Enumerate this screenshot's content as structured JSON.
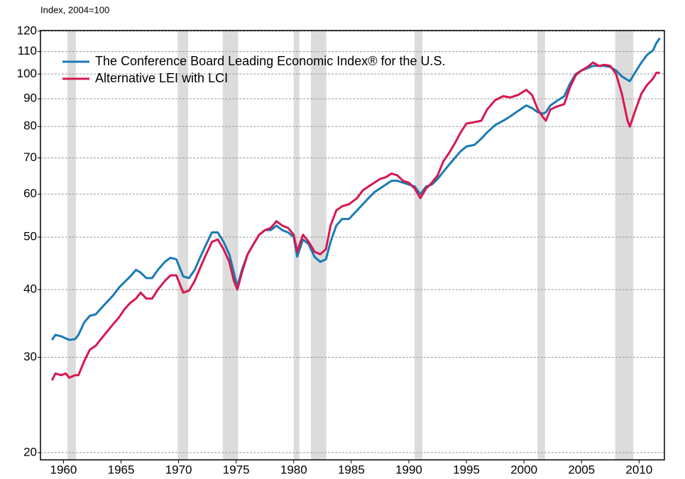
{
  "chart_data": {
    "type": "line",
    "subtitle": "Index, 2004=100",
    "log_y": true,
    "grid": true,
    "legend": "upper left",
    "shade_color": "#dcdcdc",
    "shaded_periods": [
      [
        1960.33,
        1961.08
      ],
      [
        1969.92,
        1970.83
      ],
      [
        1973.83,
        1975.17
      ],
      [
        1980.0,
        1980.5
      ],
      [
        1981.5,
        1982.83
      ],
      [
        1990.5,
        1991.17
      ],
      [
        2001.17,
        2001.83
      ],
      [
        2007.92,
        2009.5
      ]
    ],
    "xlim": [
      1958,
      2012.2
    ],
    "xticks": [
      1960,
      1965,
      1970,
      1975,
      1980,
      1985,
      1990,
      1995,
      2000,
      2005,
      2010
    ],
    "ylim": [
      19.4,
      120.3
    ],
    "yticks": [
      20,
      30,
      40,
      50,
      60,
      70,
      80,
      90,
      100,
      110,
      120
    ],
    "x": [
      1959.0,
      1959.3,
      1959.8,
      1960.2,
      1960.5,
      1961.0,
      1961.3,
      1961.8,
      1962.3,
      1962.8,
      1963.3,
      1963.8,
      1964.3,
      1964.8,
      1965.3,
      1965.8,
      1966.3,
      1966.7,
      1967.2,
      1967.7,
      1968.2,
      1968.8,
      1969.3,
      1969.8,
      1970.4,
      1970.9,
      1971.4,
      1971.9,
      1972.4,
      1972.9,
      1973.4,
      1973.9,
      1974.4,
      1974.8,
      1975.1,
      1975.5,
      1976.0,
      1976.5,
      1977.0,
      1977.5,
      1978.0,
      1978.5,
      1979.0,
      1979.5,
      1980.0,
      1980.3,
      1980.8,
      1981.3,
      1981.8,
      1982.3,
      1982.8,
      1983.2,
      1983.7,
      1984.2,
      1984.8,
      1985.5,
      1986.0,
      1986.5,
      1987.0,
      1987.5,
      1988.0,
      1988.5,
      1989.0,
      1989.5,
      1990.0,
      1990.5,
      1991.0,
      1991.5,
      1992.0,
      1992.5,
      1993.0,
      1993.5,
      1994.0,
      1994.5,
      1995.0,
      1995.7,
      1996.3,
      1996.8,
      1997.5,
      1998.2,
      1998.8,
      1999.5,
      2000.2,
      2000.7,
      2001.2,
      2001.7,
      2001.9,
      2002.3,
      2002.8,
      2003.5,
      2004.0,
      2004.5,
      2005.0,
      2005.5,
      2006.0,
      2006.5,
      2007.0,
      2007.5,
      2008.0,
      2008.5,
      2009.0,
      2009.2,
      2009.7,
      2010.2,
      2010.7,
      2011.2,
      2011.5,
      2011.8
    ],
    "series": [
      {
        "name": "The Conference Board Leading Economic Index® for the U.S.",
        "color": "#1a7ab5",
        "values": [
          32.3,
          33,
          32.8,
          32.5,
          32.3,
          32.4,
          33,
          34.8,
          35.8,
          36,
          37,
          38,
          39,
          40.3,
          41.3,
          42.3,
          43.5,
          43,
          42,
          42,
          43.5,
          45,
          45.8,
          45.5,
          42.3,
          42,
          43.5,
          46,
          48.5,
          51,
          51,
          49,
          46.5,
          43,
          40.5,
          43.5,
          46.5,
          48.5,
          50.5,
          51.5,
          51.5,
          52.5,
          51.5,
          51,
          50,
          46,
          49.5,
          48.5,
          46,
          45,
          45.5,
          49,
          52.5,
          54,
          54,
          56,
          57.5,
          59,
          60.5,
          61.5,
          62.5,
          63.5,
          63.5,
          63,
          62.5,
          62,
          60,
          62,
          62.5,
          64,
          66,
          68,
          70,
          72,
          73.5,
          74,
          76,
          78,
          80.5,
          82,
          83.5,
          85.5,
          87.5,
          86.5,
          85,
          84.5,
          85,
          87.5,
          89,
          91,
          96,
          100,
          101.5,
          102.5,
          103.5,
          103.5,
          103.5,
          103,
          101.5,
          99,
          97.5,
          97,
          101,
          105,
          108.5,
          110.5,
          114,
          116.5
        ]
      },
      {
        "name": "Alternative LEI with LCI",
        "color": "#d6184f",
        "values": [
          27.2,
          28,
          27.8,
          28,
          27.5,
          27.8,
          27.8,
          29.5,
          31,
          31.5,
          32.5,
          33.5,
          34.5,
          35.5,
          36.8,
          37.8,
          38.5,
          39.5,
          38.5,
          38.5,
          40,
          41.5,
          42.5,
          42.5,
          39.5,
          39.8,
          41.5,
          44,
          46.5,
          49,
          49.5,
          47.5,
          45,
          41.5,
          40,
          43,
          46.5,
          48.5,
          50.5,
          51.5,
          52,
          53.5,
          52.5,
          52,
          50.5,
          47,
          50.5,
          49,
          47,
          46.5,
          47.5,
          52.5,
          56,
          57,
          57.5,
          59,
          61,
          62,
          63,
          64,
          64.5,
          65.5,
          65,
          63.5,
          63,
          61.5,
          59,
          61.5,
          63,
          65,
          69,
          71.5,
          74.5,
          78,
          81,
          81.5,
          82,
          86,
          89.5,
          91,
          90.5,
          91.5,
          93.5,
          91.5,
          86,
          83,
          82,
          86,
          87,
          88,
          94.5,
          99.5,
          101.5,
          103,
          105,
          103.5,
          104,
          103.5,
          100,
          92,
          82,
          80,
          86,
          92,
          95.5,
          98,
          100.5,
          100.5
        ]
      }
    ]
  }
}
